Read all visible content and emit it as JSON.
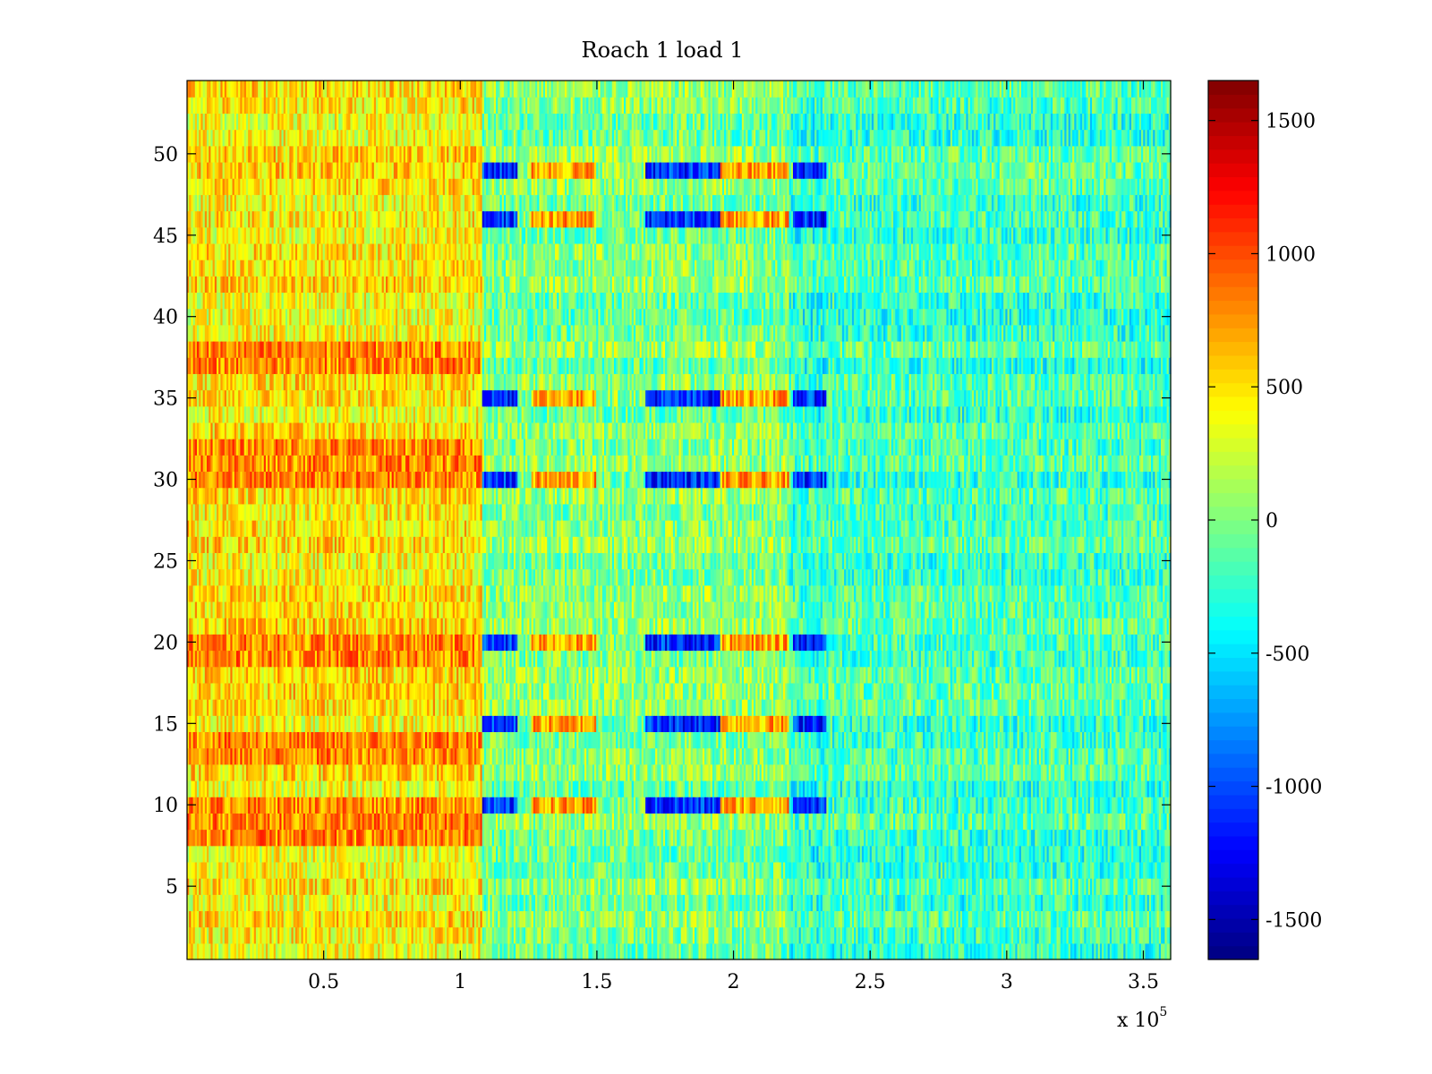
{
  "chart_data": {
    "type": "heatmap",
    "title": "Roach 1 load 1",
    "xlabel": "",
    "ylabel": "",
    "x_multiplier_label": "x 10",
    "x_multiplier_exponent": "5",
    "x_range": [
      0,
      360000
    ],
    "y_range": [
      0.5,
      54.5
    ],
    "rows": 54,
    "columns": 500,
    "x_ticks": [
      {
        "value": 50000,
        "label": "0.5"
      },
      {
        "value": 100000,
        "label": "1"
      },
      {
        "value": 150000,
        "label": "1.5"
      },
      {
        "value": 200000,
        "label": "2"
      },
      {
        "value": 250000,
        "label": "2.5"
      },
      {
        "value": 300000,
        "label": "3"
      },
      {
        "value": 350000,
        "label": "3.5"
      }
    ],
    "y_ticks": [
      {
        "value": 5,
        "label": "5"
      },
      {
        "value": 10,
        "label": "10"
      },
      {
        "value": 15,
        "label": "15"
      },
      {
        "value": 20,
        "label": "20"
      },
      {
        "value": 25,
        "label": "25"
      },
      {
        "value": 30,
        "label": "30"
      },
      {
        "value": 35,
        "label": "35"
      },
      {
        "value": 40,
        "label": "40"
      },
      {
        "value": 45,
        "label": "45"
      },
      {
        "value": 50,
        "label": "50"
      }
    ],
    "colorbar": {
      "colormap": "jet",
      "range": [
        -1650,
        1650
      ],
      "ticks": [
        {
          "value": 1500,
          "label": "1500"
        },
        {
          "value": 1000,
          "label": "1000"
        },
        {
          "value": 500,
          "label": "500"
        },
        {
          "value": 0,
          "label": "0"
        },
        {
          "value": -500,
          "label": "-500"
        },
        {
          "value": -1000,
          "label": "-1000"
        },
        {
          "value": -1500,
          "label": "-1500"
        }
      ]
    },
    "grid": false,
    "value_model": {
      "description": "approximate mean value by x segment; strongly negative stripes on specific rows",
      "segments": [
        {
          "x_start": 0,
          "x_end": 108000,
          "mean": 450
        },
        {
          "x_start": 108000,
          "x_end": 220000,
          "mean": 0
        },
        {
          "x_start": 220000,
          "x_end": 234000,
          "mean": -250
        },
        {
          "x_start": 234000,
          "x_end": 360000,
          "mean": -200
        }
      ],
      "highlight_rows": [
        10,
        15,
        20,
        30,
        35,
        46,
        49
      ],
      "highlight_row_value": -1100,
      "warm_rows": [
        8,
        9,
        10,
        13,
        14,
        19,
        20,
        30,
        31,
        32,
        37,
        38
      ],
      "warm_row_value": 800,
      "noise_amplitude": 350
    }
  }
}
